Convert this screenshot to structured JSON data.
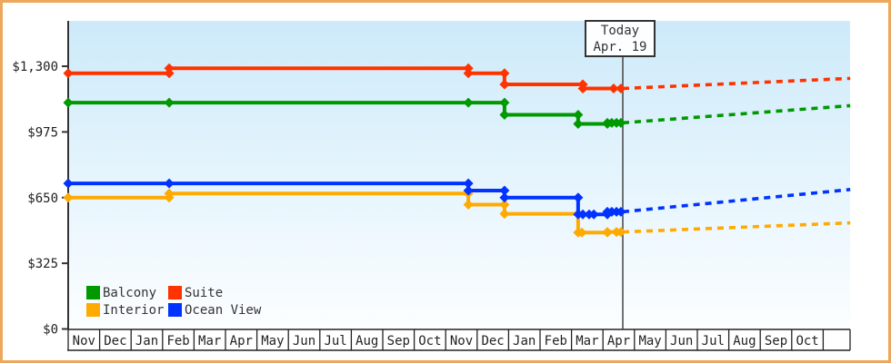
{
  "chart_data": {
    "type": "line",
    "title": "",
    "x_axis_note": "x in fractional months from first Nov cell (0-24); forecast dashed after today",
    "x_categories": [
      "Nov",
      "Dec",
      "Jan",
      "Feb",
      "Mar",
      "Apr",
      "May",
      "Jun",
      "Jul",
      "Aug",
      "Sep",
      "Oct",
      "Nov",
      "Dec",
      "Jan",
      "Feb",
      "Mar",
      "Apr",
      "May",
      "Jun",
      "Jul",
      "Aug",
      "Sep",
      "Oct"
    ],
    "y_ticks": [
      {
        "value": 0,
        "label": "$0"
      },
      {
        "value": 325,
        "label": "$325"
      },
      {
        "value": 650,
        "label": "$650"
      },
      {
        "value": 975,
        "label": "$975"
      },
      {
        "value": 1300,
        "label": "$1,300"
      }
    ],
    "ylim": [
      0,
      1525
    ],
    "grid": false,
    "legend_position": "bottom-left",
    "today": {
      "label": "Today",
      "date": "Apr. 19",
      "month_position": 17.63
    },
    "forecast_end_month": 24.86,
    "series": [
      {
        "name": "Balcony",
        "color": "#009900",
        "z": 3,
        "steps": [
          [
            0,
            1120
          ],
          [
            3.21,
            1120
          ],
          [
            12.72,
            1120
          ],
          [
            13.87,
            1060
          ],
          [
            16.21,
            1015
          ],
          [
            17.14,
            1020
          ]
        ],
        "extra_markers": [
          [
            17.28,
            1020
          ],
          [
            17.43,
            1020
          ],
          [
            17.57,
            1020
          ]
        ],
        "forecast_end_price": 1105
      },
      {
        "name": "Suite",
        "color": "#ff3300",
        "z": 4,
        "steps": [
          [
            0,
            1265
          ],
          [
            3.21,
            1290
          ],
          [
            12.72,
            1265
          ],
          [
            13.87,
            1210
          ],
          [
            16.36,
            1190
          ]
        ],
        "extra_markers": [
          [
            17.34,
            1190
          ],
          [
            17.57,
            1190
          ]
        ],
        "forecast_end_price": 1240
      },
      {
        "name": "Interior",
        "color": "#ffaa00",
        "z": 1,
        "steps": [
          [
            0,
            650
          ],
          [
            3.21,
            670
          ],
          [
            12.72,
            615
          ],
          [
            13.87,
            570
          ],
          [
            16.21,
            477
          ],
          [
            17.14,
            480
          ]
        ],
        "extra_markers": [
          [
            16.33,
            477
          ],
          [
            17.43,
            480
          ],
          [
            17.57,
            480
          ]
        ],
        "forecast_end_price": 525
      },
      {
        "name": "Ocean View",
        "color": "#0033ff",
        "z": 2,
        "steps": [
          [
            0,
            720
          ],
          [
            3.21,
            720
          ],
          [
            12.72,
            685
          ],
          [
            13.87,
            650
          ],
          [
            16.21,
            567
          ],
          [
            17.14,
            580
          ]
        ],
        "extra_markers": [
          [
            16.36,
            567
          ],
          [
            16.56,
            567
          ],
          [
            16.71,
            567
          ],
          [
            17.28,
            580
          ],
          [
            17.43,
            580
          ],
          [
            17.57,
            580
          ]
        ],
        "forecast_end_price": 690
      }
    ],
    "legend": [
      {
        "label": "Balcony",
        "color": "#009900"
      },
      {
        "label": "Suite",
        "color": "#ff3300"
      },
      {
        "label": "Interior",
        "color": "#ffaa00"
      },
      {
        "label": "Ocean View",
        "color": "#0033ff"
      }
    ]
  }
}
